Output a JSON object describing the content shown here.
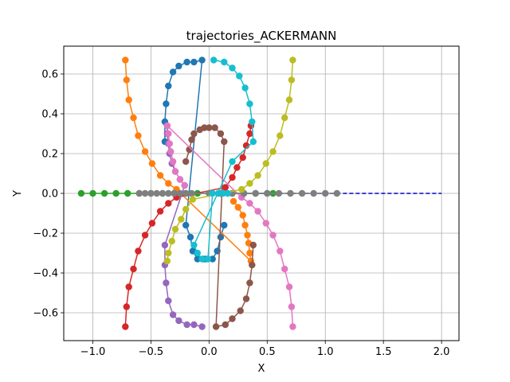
{
  "chart_data": {
    "type": "line",
    "title": "trajectories_ACKERMANN",
    "xlabel": "X",
    "ylabel": "Y",
    "xlim": [
      -1.25,
      2.15
    ],
    "ylim": [
      -0.74,
      0.74
    ],
    "xticks": [
      -1.0,
      -0.5,
      0.0,
      0.5,
      1.0,
      1.5,
      2.0
    ],
    "xtick_labels": [
      "−1.0",
      "−0.5",
      "0.0",
      "0.5",
      "1.0",
      "1.5",
      "2.0"
    ],
    "yticks": [
      -0.6,
      -0.4,
      -0.2,
      0.0,
      0.2,
      0.4,
      0.6
    ],
    "ytick_labels": [
      "−0.6",
      "−0.4",
      "−0.2",
      "0.0",
      "0.2",
      "0.4",
      "0.6"
    ],
    "grid": true,
    "reference_line": {
      "x": [
        0,
        2.0
      ],
      "y": [
        0,
        0
      ],
      "color": "#0000cc",
      "style": "dashed"
    },
    "series": [
      {
        "color": "#1f77b4",
        "points": [
          [
            -0.38,
            0.26
          ],
          [
            -0.38,
            0.36
          ],
          [
            -0.37,
            0.45
          ],
          [
            -0.35,
            0.54
          ],
          [
            -0.31,
            0.61
          ],
          [
            -0.26,
            0.64
          ],
          [
            -0.19,
            0.66
          ],
          [
            -0.13,
            0.66
          ],
          [
            -0.06,
            0.67
          ],
          [
            -0.2,
            -0.16
          ],
          [
            -0.16,
            -0.22
          ],
          [
            -0.14,
            -0.29
          ],
          [
            -0.1,
            -0.33
          ],
          [
            -0.05,
            -0.33
          ],
          [
            -0.03,
            -0.33
          ],
          [
            0.03,
            -0.33
          ],
          [
            0.07,
            -0.29
          ],
          [
            0.1,
            -0.22
          ],
          [
            0.13,
            -0.16
          ]
        ]
      },
      {
        "color": "#ff7f0e",
        "points": [
          [
            -0.72,
            0.67
          ],
          [
            -0.71,
            0.57
          ],
          [
            -0.69,
            0.47
          ],
          [
            -0.65,
            0.38
          ],
          [
            -0.61,
            0.29
          ],
          [
            -0.55,
            0.21
          ],
          [
            -0.49,
            0.15
          ],
          [
            -0.42,
            0.09
          ],
          [
            -0.35,
            0.05
          ],
          [
            -0.28,
            0.02
          ],
          [
            0.36,
            -0.34
          ],
          [
            0.35,
            -0.3
          ],
          [
            0.34,
            -0.25
          ],
          [
            0.33,
            -0.21
          ],
          [
            0.31,
            -0.16
          ],
          [
            0.29,
            -0.11
          ],
          [
            0.25,
            -0.07
          ],
          [
            0.21,
            -0.04
          ]
        ]
      },
      {
        "color": "#2ca02c",
        "points": [
          [
            -1.1,
            0
          ],
          [
            -1.0,
            0
          ],
          [
            -0.9,
            0
          ],
          [
            -0.8,
            0
          ],
          [
            -0.7,
            0
          ],
          [
            -0.6,
            0
          ],
          [
            -0.5,
            0
          ],
          [
            -0.4,
            0
          ],
          [
            -0.3,
            0
          ],
          [
            -0.2,
            0
          ],
          [
            -0.1,
            0
          ],
          [
            0.0,
            0
          ],
          [
            0.1,
            0
          ],
          [
            0.2,
            0
          ],
          [
            0.3,
            0
          ],
          [
            0.4,
            0
          ],
          [
            0.5,
            0
          ],
          [
            0.55,
            0
          ]
        ]
      },
      {
        "color": "#d62728",
        "points": [
          [
            -0.72,
            -0.67
          ],
          [
            -0.71,
            -0.57
          ],
          [
            -0.69,
            -0.47
          ],
          [
            -0.65,
            -0.38
          ],
          [
            -0.61,
            -0.29
          ],
          [
            -0.55,
            -0.21
          ],
          [
            -0.49,
            -0.15
          ],
          [
            -0.42,
            -0.09
          ],
          [
            -0.35,
            -0.05
          ],
          [
            -0.28,
            -0.02
          ],
          [
            0.14,
            0.03
          ],
          [
            0.2,
            0.08
          ],
          [
            0.24,
            0.13
          ],
          [
            0.29,
            0.18
          ],
          [
            0.32,
            0.24
          ],
          [
            0.35,
            0.3
          ],
          [
            0.36,
            0.34
          ]
        ]
      },
      {
        "color": "#9467bd",
        "points": [
          [
            -0.36,
            0.34
          ],
          [
            -0.36,
            0.3
          ],
          [
            -0.35,
            0.25
          ],
          [
            -0.34,
            0.2
          ],
          [
            -0.32,
            0.15
          ],
          [
            -0.29,
            0.11
          ],
          [
            -0.25,
            0.07
          ],
          [
            -0.21,
            0.04
          ],
          [
            -0.38,
            -0.26
          ],
          [
            -0.38,
            -0.36
          ],
          [
            -0.37,
            -0.45
          ],
          [
            -0.35,
            -0.54
          ],
          [
            -0.31,
            -0.61
          ],
          [
            -0.26,
            -0.64
          ],
          [
            -0.19,
            -0.66
          ],
          [
            -0.13,
            -0.66
          ],
          [
            -0.06,
            -0.67
          ]
        ]
      },
      {
        "color": "#8c564b",
        "points": [
          [
            -0.2,
            0.16
          ],
          [
            -0.17,
            0.22
          ],
          [
            -0.15,
            0.27
          ],
          [
            -0.13,
            0.3
          ],
          [
            -0.08,
            0.32
          ],
          [
            -0.04,
            0.33
          ],
          [
            0.0,
            0.33
          ],
          [
            0.05,
            0.33
          ],
          [
            0.1,
            0.3
          ],
          [
            0.13,
            0.26
          ],
          [
            0.06,
            -0.67
          ],
          [
            0.14,
            -0.66
          ],
          [
            0.2,
            -0.63
          ],
          [
            0.27,
            -0.59
          ],
          [
            0.32,
            -0.53
          ],
          [
            0.35,
            -0.45
          ],
          [
            0.37,
            -0.36
          ],
          [
            0.38,
            -0.26
          ]
        ]
      },
      {
        "color": "#e377c2",
        "points": [
          [
            0.72,
            -0.67
          ],
          [
            0.71,
            -0.57
          ],
          [
            0.69,
            -0.47
          ],
          [
            0.65,
            -0.38
          ],
          [
            0.61,
            -0.29
          ],
          [
            0.55,
            -0.21
          ],
          [
            0.49,
            -0.15
          ],
          [
            0.42,
            -0.09
          ],
          [
            0.35,
            -0.05
          ],
          [
            0.28,
            -0.02
          ],
          [
            -0.36,
            0.34
          ],
          [
            -0.35,
            0.3
          ],
          [
            -0.34,
            0.25
          ],
          [
            -0.33,
            0.21
          ],
          [
            -0.31,
            0.16
          ],
          [
            -0.29,
            0.11
          ],
          [
            -0.25,
            0.07
          ],
          [
            -0.21,
            0.04
          ]
        ]
      },
      {
        "color": "#7f7f7f",
        "points": [
          [
            -0.6,
            0
          ],
          [
            -0.55,
            0
          ],
          [
            -0.5,
            0
          ],
          [
            -0.45,
            0
          ],
          [
            -0.4,
            0
          ],
          [
            -0.35,
            0
          ],
          [
            -0.3,
            0
          ],
          [
            -0.25,
            0
          ],
          [
            -0.2,
            0
          ],
          [
            -0.15,
            0
          ],
          [
            0.0,
            0
          ],
          [
            0.1,
            0
          ],
          [
            0.2,
            0
          ],
          [
            0.3,
            0
          ],
          [
            0.4,
            0
          ],
          [
            0.5,
            0
          ],
          [
            0.6,
            0
          ],
          [
            0.7,
            0
          ],
          [
            0.8,
            0
          ],
          [
            0.9,
            0
          ],
          [
            1.0,
            0
          ],
          [
            1.1,
            0
          ]
        ]
      },
      {
        "color": "#bcbd22",
        "points": [
          [
            0.72,
            0.67
          ],
          [
            0.71,
            0.57
          ],
          [
            0.69,
            0.47
          ],
          [
            0.65,
            0.38
          ],
          [
            0.61,
            0.29
          ],
          [
            0.55,
            0.21
          ],
          [
            0.49,
            0.15
          ],
          [
            0.42,
            0.09
          ],
          [
            0.35,
            0.05
          ],
          [
            0.28,
            0.02
          ],
          [
            -0.14,
            -0.03
          ],
          [
            -0.2,
            -0.08
          ],
          [
            -0.24,
            -0.13
          ],
          [
            -0.29,
            -0.18
          ],
          [
            -0.32,
            -0.24
          ],
          [
            -0.35,
            -0.3
          ],
          [
            -0.36,
            -0.34
          ]
        ]
      },
      {
        "color": "#17becf",
        "points": [
          [
            0.04,
            0.67
          ],
          [
            0.13,
            0.66
          ],
          [
            0.2,
            0.63
          ],
          [
            0.26,
            0.59
          ],
          [
            0.31,
            0.53
          ],
          [
            0.35,
            0.45
          ],
          [
            0.37,
            0.36
          ],
          [
            0.38,
            0.26
          ],
          [
            0.2,
            0.16
          ],
          [
            -0.13,
            -0.26
          ],
          [
            -0.1,
            -0.3
          ],
          [
            -0.06,
            -0.33
          ],
          [
            -0.01,
            -0.33
          ],
          [
            0.03,
            0
          ],
          [
            0.08,
            0
          ],
          [
            0.12,
            0
          ],
          [
            0.16,
            0
          ]
        ]
      }
    ]
  }
}
